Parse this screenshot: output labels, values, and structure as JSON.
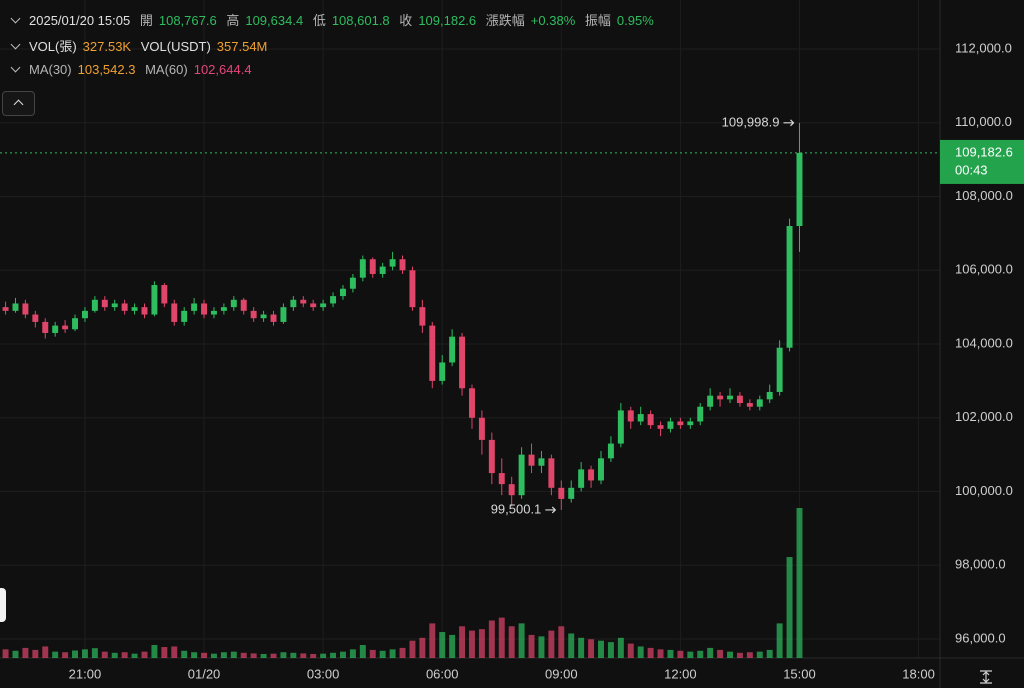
{
  "header": {
    "datetime": "2025/01/20 15:05",
    "open_label": "開",
    "open": "108,767.6",
    "high_label": "高",
    "high": "109,634.4",
    "low_label": "低",
    "low": "108,601.8",
    "close_label": "收",
    "close": "109,182.6",
    "change_label": "漲跌幅",
    "change": "+0.38%",
    "amplitude_label": "振幅",
    "amplitude": "0.95%"
  },
  "indicators": {
    "vol_label": "VOL(張)",
    "vol": "327.53K",
    "vol_usdt_label": "VOL(USDT)",
    "vol_usdt": "357.54M",
    "ma30_label": "MA(30)",
    "ma30": "103,542.3",
    "ma60_label": "MA(60)",
    "ma60": "102,644.4"
  },
  "chart_data": {
    "type": "candlestick",
    "up_color": "#2ebd5f",
    "down_color": "#e0456a",
    "grid": true,
    "x": [
      19,
      19.25,
      19.5,
      19.75,
      20,
      20.25,
      20.5,
      20.75,
      21,
      21.25,
      21.5,
      21.75,
      22,
      22.25,
      22.5,
      22.75,
      23,
      23.25,
      23.5,
      23.75,
      24,
      24.25,
      24.5,
      24.75,
      25,
      25.25,
      25.5,
      25.75,
      26,
      26.25,
      26.5,
      26.75,
      27,
      27.25,
      27.5,
      27.75,
      28,
      28.25,
      28.5,
      28.75,
      29,
      29.25,
      29.5,
      29.75,
      30,
      30.25,
      30.5,
      30.75,
      31,
      31.25,
      31.5,
      31.75,
      32,
      32.25,
      32.5,
      32.75,
      33,
      33.25,
      33.5,
      33.75,
      34,
      34.25,
      34.5,
      34.75,
      35,
      35.25,
      35.5,
      35.75,
      36,
      36.25,
      36.5,
      36.75,
      37,
      37.25,
      37.5,
      37.75,
      38,
      38.25,
      38.5,
      38.75,
      39
    ],
    "open": [
      105000,
      104900,
      105100,
      104800,
      104600,
      104300,
      104500,
      104400,
      104700,
      104900,
      105200,
      105000,
      105100,
      104900,
      105000,
      104800,
      105600,
      105100,
      104600,
      104900,
      105100,
      104800,
      104900,
      105000,
      105200,
      104900,
      104700,
      104800,
      104600,
      105000,
      105200,
      105100,
      105000,
      105100,
      105300,
      105500,
      105800,
      106300,
      105900,
      106100,
      106300,
      106000,
      105000,
      104500,
      103000,
      103500,
      104200,
      102800,
      102000,
      101400,
      100500,
      100200,
      99900,
      101000,
      100700,
      100900,
      100100,
      99800,
      100100,
      100600,
      100300,
      100900,
      101300,
      102200,
      101900,
      102100,
      101800,
      101700,
      101900,
      101800,
      101900,
      102300,
      102600,
      102500,
      102600,
      102400,
      102300,
      102500,
      102700,
      103900,
      107200
    ],
    "high": [
      105150,
      105250,
      105200,
      104900,
      104700,
      104600,
      104650,
      104800,
      105000,
      105300,
      105300,
      105200,
      105200,
      105100,
      105100,
      105700,
      105650,
      105200,
      105000,
      105250,
      105200,
      105000,
      105100,
      105300,
      105250,
      105000,
      104900,
      104900,
      105100,
      105300,
      105300,
      105200,
      105200,
      105400,
      105600,
      105900,
      106400,
      106350,
      106200,
      106500,
      106400,
      106100,
      105200,
      104600,
      103700,
      104400,
      104300,
      102900,
      102200,
      101600,
      100900,
      100400,
      101200,
      101300,
      101100,
      101000,
      100300,
      100300,
      100800,
      100700,
      101100,
      101500,
      102400,
      102300,
      102300,
      102200,
      101900,
      102000,
      102000,
      102000,
      102400,
      102800,
      102700,
      102800,
      102700,
      102500,
      102600,
      102900,
      104100,
      107400,
      109998.9
    ],
    "low": [
      104800,
      104850,
      104700,
      104450,
      104150,
      104200,
      104300,
      104350,
      104600,
      104850,
      104900,
      104900,
      104800,
      104800,
      104700,
      104750,
      105000,
      104500,
      104500,
      104800,
      104700,
      104700,
      104800,
      104900,
      104800,
      104600,
      104600,
      104500,
      104550,
      104900,
      105000,
      104900,
      104900,
      105000,
      105200,
      105400,
      105700,
      105800,
      105800,
      106000,
      105900,
      104900,
      104300,
      102800,
      102900,
      103400,
      102600,
      101700,
      101000,
      100200,
      99900,
      99600,
      99800,
      100500,
      100500,
      99900,
      99500.1,
      99700,
      100000,
      100100,
      100200,
      100800,
      101200,
      101700,
      101800,
      101700,
      101500,
      101600,
      101700,
      101700,
      101800,
      102200,
      102300,
      102400,
      102300,
      102200,
      102200,
      102400,
      102600,
      103800,
      106500
    ],
    "close": [
      104900,
      105100,
      104800,
      104600,
      104300,
      104500,
      104400,
      104700,
      104900,
      105200,
      105000,
      105100,
      104900,
      105000,
      104800,
      105600,
      105100,
      104600,
      104900,
      105100,
      104800,
      104900,
      105000,
      105200,
      104900,
      104700,
      104800,
      104600,
      105000,
      105200,
      105100,
      105000,
      105100,
      105300,
      105500,
      105800,
      106300,
      105900,
      106100,
      106300,
      106000,
      105000,
      104500,
      103000,
      103500,
      104200,
      102800,
      102000,
      101400,
      100500,
      100200,
      99900,
      101000,
      100700,
      100900,
      100100,
      99800,
      100100,
      100600,
      100300,
      100900,
      101300,
      102200,
      101900,
      102100,
      101800,
      101700,
      101900,
      101800,
      101900,
      102300,
      102600,
      102500,
      102600,
      102400,
      102300,
      102500,
      102700,
      103900,
      107200,
      109182.6
    ],
    "volume": [
      30,
      25,
      35,
      28,
      40,
      22,
      20,
      26,
      30,
      34,
      22,
      18,
      20,
      15,
      22,
      45,
      38,
      40,
      25,
      20,
      18,
      15,
      20,
      22,
      18,
      16,
      14,
      15,
      20,
      18,
      16,
      14,
      15,
      18,
      22,
      30,
      45,
      28,
      25,
      30,
      35,
      60,
      70,
      120,
      90,
      80,
      110,
      95,
      100,
      130,
      140,
      110,
      120,
      80,
      75,
      95,
      110,
      85,
      70,
      65,
      60,
      55,
      70,
      50,
      40,
      35,
      30,
      28,
      25,
      22,
      25,
      35,
      28,
      22,
      18,
      20,
      22,
      28,
      120,
      350,
      520
    ],
    "xlim": [
      18.86,
      42.54
    ],
    "xticks": [
      {
        "value": 21,
        "label": "21:00"
      },
      {
        "value": 24,
        "label": "01/20"
      },
      {
        "value": 27,
        "label": "03:00"
      },
      {
        "value": 30,
        "label": "06:00"
      },
      {
        "value": 33,
        "label": "09:00"
      },
      {
        "value": 36,
        "label": "12:00"
      },
      {
        "value": 39,
        "label": "15:00"
      },
      {
        "value": 42,
        "label": "18:00"
      }
    ],
    "ylim": [
      95485,
      113330
    ],
    "yticks": [
      {
        "value": 96000,
        "label": "96,000.0"
      },
      {
        "value": 98000,
        "label": "98,000.0"
      },
      {
        "value": 100000,
        "label": "100,000.0"
      },
      {
        "value": 102000,
        "label": "102,000.0"
      },
      {
        "value": 104000,
        "label": "104,000.0"
      },
      {
        "value": 106000,
        "label": "106,000.0"
      },
      {
        "value": 108000,
        "label": "108,000.0"
      },
      {
        "value": 110000,
        "label": "110,000.0"
      },
      {
        "value": 112000,
        "label": "112,000.0"
      }
    ],
    "annotations": [
      {
        "x": 39,
        "value": 109998.9,
        "label": "109,998.9"
      },
      {
        "x": 33,
        "value": 99500.1,
        "label": "99,500.1"
      }
    ],
    "last_price": {
      "value": 109182.6,
      "label": "109,182.6",
      "timer": "00:43"
    }
  }
}
